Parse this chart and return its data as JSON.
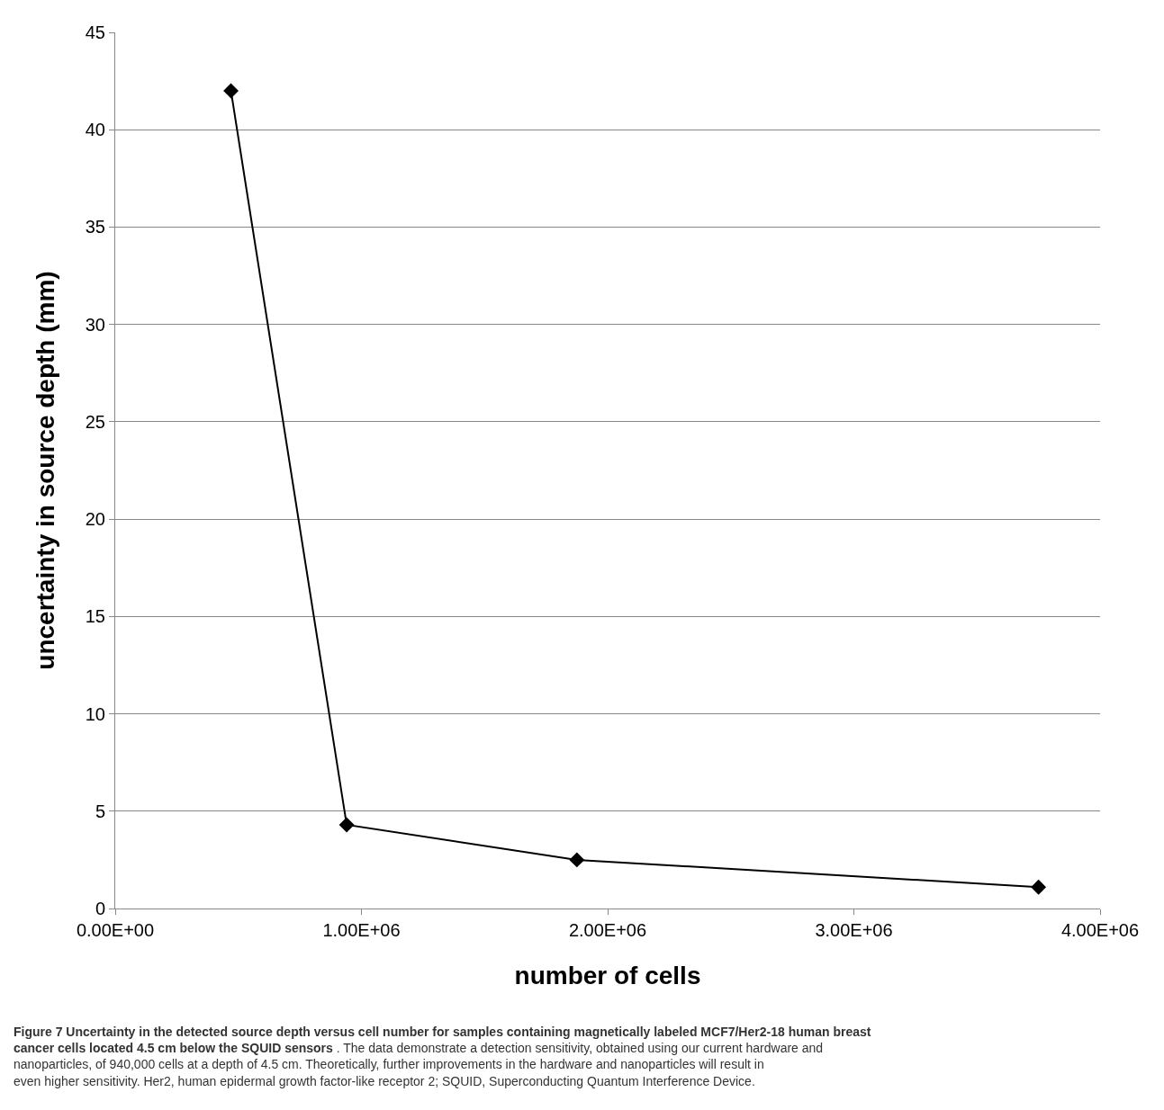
{
  "chart_data": {
    "type": "line",
    "xlabel": "number of cells",
    "ylabel": "uncertainty in source depth (mm)",
    "x": [
      470000,
      940000,
      1875000,
      3750000
    ],
    "series": [
      {
        "color": "#000000",
        "values": [
          42,
          4.3,
          2.5,
          1.1
        ]
      }
    ],
    "xlim": [
      0,
      4000000
    ],
    "xticks": [
      {
        "value": 0,
        "label": "0.00E+00"
      },
      {
        "value": 1000000,
        "label": "1.00E+06"
      },
      {
        "value": 2000000,
        "label": "2.00E+06"
      },
      {
        "value": 3000000,
        "label": "3.00E+06"
      },
      {
        "value": 4000000,
        "label": "4.00E+06"
      }
    ],
    "ylim": [
      0,
      45
    ],
    "yticks": [
      0,
      5,
      10,
      15,
      20,
      25,
      30,
      35,
      40,
      45
    ],
    "grid": "y",
    "marker": "diamond",
    "line_style": "solid",
    "legend": false,
    "annotations": [
      "Figure 7 Uncertainty in the detected source depth versus cell number for samples containing magnetically labeled MCF7/Her2-18 human breast cancer cells located 4.5 cm below the SQUID sensors",
      ". The data demonstrate a detection sensitivity, obtained using our current hardware and nanoparticles, of 940,000 cells at a depth of 4.5 cm. Theoretically, further improvements in the hardware and nanoparticles will result in even higher sensitivity. Her2, human epidermal growth factor-like receptor 2; SQUID, Superconducting Quantum Interference Device."
    ]
  }
}
